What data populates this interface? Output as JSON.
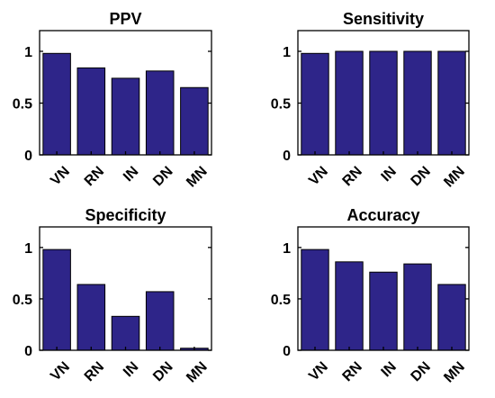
{
  "chart_data": [
    {
      "type": "bar",
      "title": "PPV",
      "categories": [
        "VN",
        "RN",
        "IN",
        "DN",
        "MN"
      ],
      "values": [
        0.98,
        0.84,
        0.74,
        0.81,
        0.65
      ],
      "ylim": [
        0,
        1.2
      ],
      "yticks": [
        "0",
        "0.5",
        "1"
      ],
      "bar_color": "#2e2589"
    },
    {
      "type": "bar",
      "title": "Sensitivity",
      "categories": [
        "VN",
        "RN",
        "IN",
        "DN",
        "MN"
      ],
      "values": [
        0.98,
        1.0,
        1.0,
        1.0,
        1.0
      ],
      "ylim": [
        0,
        1.2
      ],
      "yticks": [
        "0",
        "0.5",
        "1"
      ],
      "bar_color": "#2e2589"
    },
    {
      "type": "bar",
      "title": "Specificity",
      "categories": [
        "VN",
        "RN",
        "IN",
        "DN",
        "MN"
      ],
      "values": [
        0.98,
        0.64,
        0.33,
        0.57,
        0.02
      ],
      "ylim": [
        0,
        1.2
      ],
      "yticks": [
        "0",
        "0.5",
        "1"
      ],
      "bar_color": "#2e2589"
    },
    {
      "type": "bar",
      "title": "Accuracy",
      "categories": [
        "VN",
        "RN",
        "IN",
        "DN",
        "MN"
      ],
      "values": [
        0.98,
        0.86,
        0.76,
        0.84,
        0.64
      ],
      "ylim": [
        0,
        1.2
      ],
      "yticks": [
        "0",
        "0.5",
        "1"
      ],
      "bar_color": "#2e2589"
    }
  ]
}
